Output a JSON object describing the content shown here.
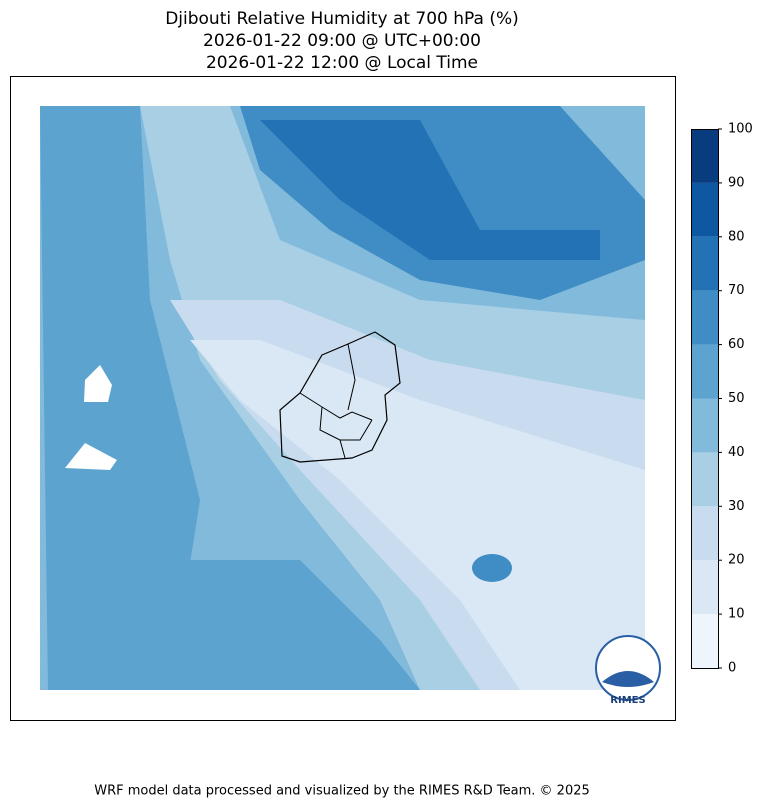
{
  "title": [
    "Djibouti Relative Humidity at 700 hPa (%)",
    "2026-01-22 09:00 @ UTC+00:00",
    "2026-01-22 12:00 @ Local Time"
  ],
  "colorbar": {
    "ticks": [
      0,
      10,
      20,
      30,
      40,
      50,
      60,
      70,
      80,
      90,
      100
    ],
    "colors": [
      "#eff5fc",
      "#dae8f5",
      "#c9dcef",
      "#a9cfe5",
      "#81badb",
      "#5ca3d0",
      "#3f8dc4",
      "#2272b5",
      "#0e58a2",
      "#083c7e"
    ]
  },
  "logo": "RIMES",
  "footer": "WRF model data processed and visualized by the RIMES R&D Team. © 2025"
}
